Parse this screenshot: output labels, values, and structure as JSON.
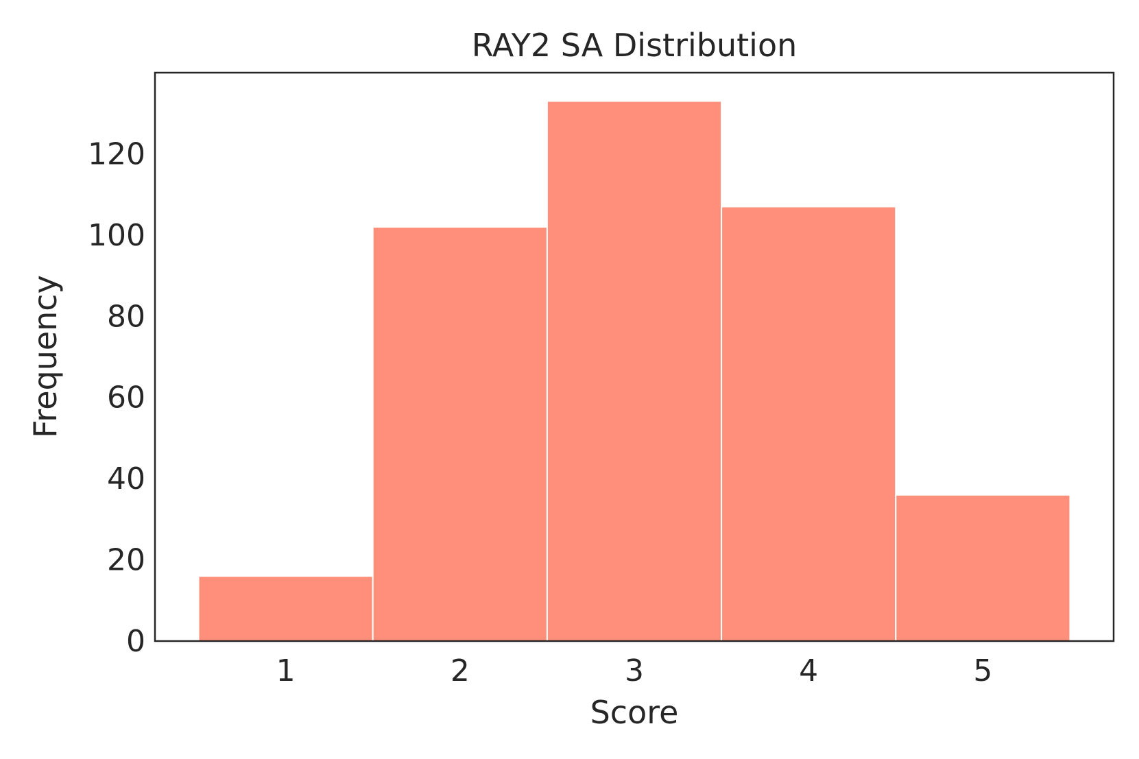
{
  "chart_data": {
    "type": "bar",
    "title": "RAY2 SA Distribution",
    "xlabel": "Score",
    "ylabel": "Frequency",
    "categories": [
      "1",
      "2",
      "3",
      "4",
      "5"
    ],
    "values": [
      16,
      102,
      133,
      107,
      36
    ],
    "ylim": [
      0,
      140
    ],
    "xlim": [
      0.25,
      5.75
    ],
    "yticks": [
      0,
      20,
      40,
      60,
      80,
      100,
      120
    ],
    "grid": false,
    "bar_color": "#ff8f7a",
    "frame_color": "#262626"
  }
}
